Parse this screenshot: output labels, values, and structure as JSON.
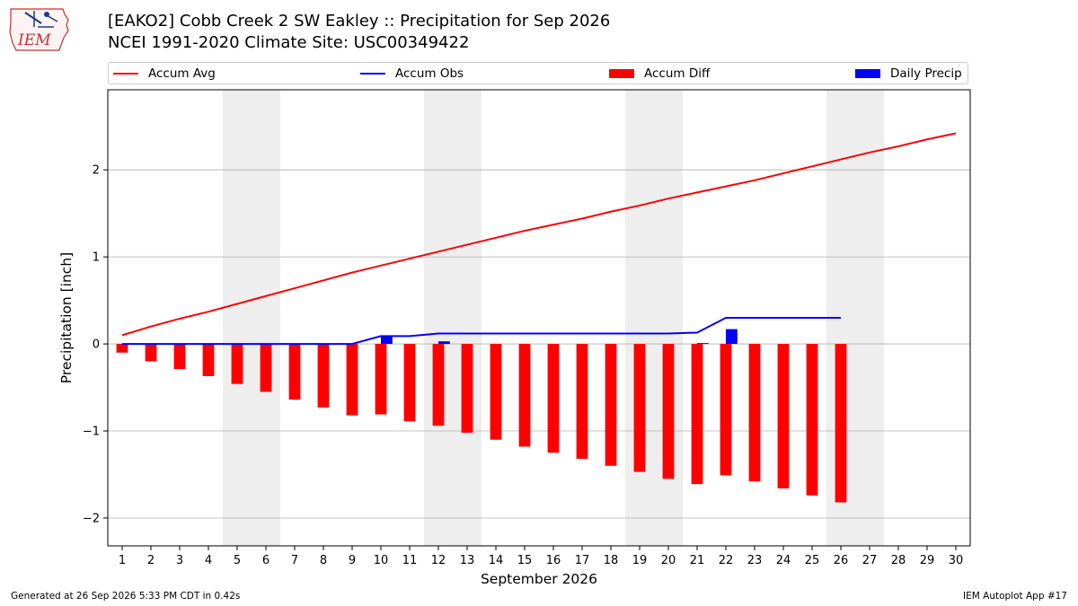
{
  "header": {
    "logo_text": "IEM",
    "title_line1": "[EAKO2] Cobb Creek 2 SW Eakley :: Precipitation for Sep 2026",
    "title_line2": "NCEI 1991-2020 Climate Site: USC00349422"
  },
  "footer": {
    "left": "Generated at 26 Sep 2026 5:33 PM CDT in 0.42s",
    "right": "IEM Autoplot App #17"
  },
  "colors": {
    "avg": "#ff0000",
    "obs": "#0000ff",
    "diff": "#ff0000",
    "daily": "#0000ff",
    "weekend_shade": "#eeeeee",
    "grid": "#b0b0b0"
  },
  "chart_data": {
    "type": "bar",
    "title": "[EAKO2] Cobb Creek 2 SW Eakley :: Precipitation for Sep 2026",
    "subtitle": "NCEI 1991-2020 Climate Site: USC00349422",
    "xlabel": "September 2026",
    "ylabel": "Precipitation [inch]",
    "xlim": [
      0.5,
      30.5
    ],
    "ylim": [
      -2.32,
      2.92
    ],
    "yticks": [
      -2,
      -1,
      0,
      1,
      2
    ],
    "ytick_labels": [
      "−2",
      "−1",
      "0",
      "1",
      "2"
    ],
    "x": [
      1,
      2,
      3,
      4,
      5,
      6,
      7,
      8,
      9,
      10,
      11,
      12,
      13,
      14,
      15,
      16,
      17,
      18,
      19,
      20,
      21,
      22,
      23,
      24,
      25,
      26,
      27,
      28,
      29,
      30
    ],
    "x_tick_labels": [
      "1",
      "2",
      "3",
      "4",
      "5",
      "6",
      "7",
      "8",
      "9",
      "10",
      "11",
      "12",
      "13",
      "14",
      "15",
      "16",
      "17",
      "18",
      "19",
      "20",
      "21",
      "22",
      "23",
      "24",
      "25",
      "26",
      "27",
      "28",
      "29",
      "30"
    ],
    "weekend_spans": [
      [
        4.5,
        6.5
      ],
      [
        11.5,
        13.5
      ],
      [
        18.5,
        20.5
      ],
      [
        25.5,
        27.5
      ]
    ],
    "grid": true,
    "legend_placement": "top",
    "legend": [
      "Accum Avg",
      "Accum Obs",
      "Accum Diff",
      "Daily Precip"
    ],
    "series": [
      {
        "name": "Accum Avg",
        "type": "line",
        "x": [
          1,
          2,
          3,
          4,
          5,
          6,
          7,
          8,
          9,
          10,
          11,
          12,
          13,
          14,
          15,
          16,
          17,
          18,
          19,
          20,
          21,
          22,
          23,
          24,
          25,
          26,
          27,
          28,
          29,
          30
        ],
        "values": [
          0.1,
          0.2,
          0.29,
          0.37,
          0.46,
          0.55,
          0.64,
          0.73,
          0.82,
          0.9,
          0.98,
          1.06,
          1.14,
          1.22,
          1.3,
          1.37,
          1.44,
          1.52,
          1.59,
          1.67,
          1.74,
          1.81,
          1.88,
          1.96,
          2.04,
          2.12,
          2.2,
          2.27,
          2.35,
          2.42
        ]
      },
      {
        "name": "Accum Obs",
        "type": "line",
        "x": [
          1,
          2,
          3,
          4,
          5,
          6,
          7,
          8,
          9,
          10,
          11,
          12,
          13,
          14,
          15,
          16,
          17,
          18,
          19,
          20,
          21,
          22,
          23,
          24,
          25,
          26
        ],
        "values": [
          0,
          0,
          0,
          0,
          0,
          0,
          0,
          0,
          0,
          0.09,
          0.09,
          0.12,
          0.12,
          0.12,
          0.12,
          0.12,
          0.12,
          0.12,
          0.12,
          0.12,
          0.13,
          0.3,
          0.3,
          0.3,
          0.3,
          0.3
        ]
      },
      {
        "name": "Accum Diff",
        "type": "bar",
        "x": [
          1,
          2,
          3,
          4,
          5,
          6,
          7,
          8,
          9,
          10,
          11,
          12,
          13,
          14,
          15,
          16,
          17,
          18,
          19,
          20,
          21,
          22,
          23,
          24,
          25,
          26
        ],
        "values": [
          -0.1,
          -0.2,
          -0.29,
          -0.37,
          -0.46,
          -0.55,
          -0.64,
          -0.73,
          -0.82,
          -0.81,
          -0.89,
          -0.94,
          -1.02,
          -1.1,
          -1.18,
          -1.25,
          -1.32,
          -1.4,
          -1.47,
          -1.55,
          -1.61,
          -1.51,
          -1.58,
          -1.66,
          -1.74,
          -1.82
        ]
      },
      {
        "name": "Daily Precip",
        "type": "bar",
        "x": [
          10,
          12,
          21,
          22
        ],
        "values": [
          0.09,
          0.03,
          0.01,
          0.17
        ]
      }
    ]
  }
}
